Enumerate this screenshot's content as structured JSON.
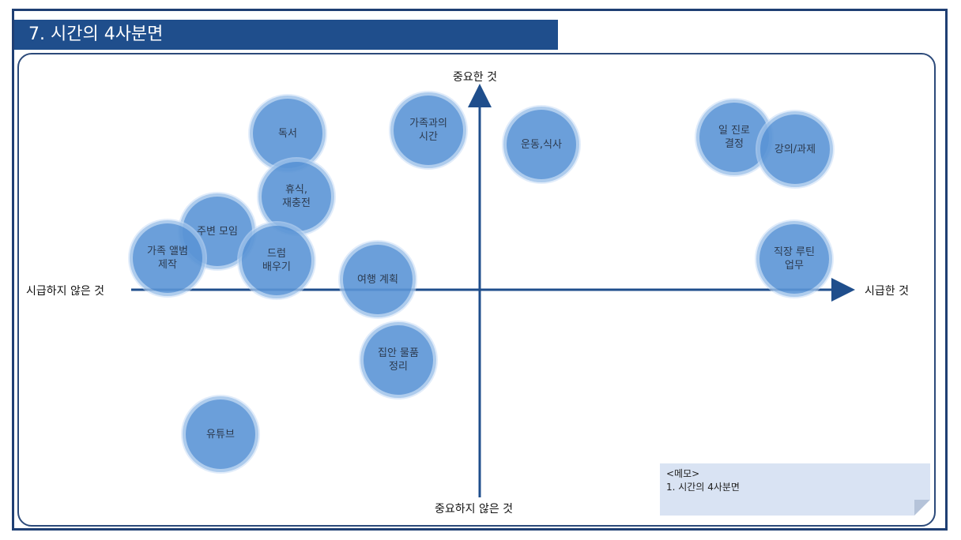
{
  "title": "7. 시간의 4사분면",
  "axes": {
    "top": "중요한 것",
    "bottom": "중요하지 않은 것",
    "left": "시급하지 않은 것",
    "right": "시급한 것"
  },
  "items": [
    {
      "label": "독서"
    },
    {
      "label": "가족과의\n시간"
    },
    {
      "label": "운동,식사"
    },
    {
      "label": "일 진로\n결정"
    },
    {
      "label": "강의/과제"
    },
    {
      "label": "휴식,\n재충전"
    },
    {
      "label": "주변 모임"
    },
    {
      "label": "가족 앨범\n제작"
    },
    {
      "label": "드럼\n배우기"
    },
    {
      "label": "여행 계획"
    },
    {
      "label": "직장 루틴\n업무"
    },
    {
      "label": "집안 물품\n정리"
    },
    {
      "label": "유튜브"
    }
  ],
  "memo": {
    "heading": "<메모>",
    "items": [
      "1.    시간의 4사분면"
    ]
  },
  "colors": {
    "title_bg": "#1f4e8c",
    "bubble": "#5b95d6",
    "axis": "#1f4e8c",
    "memo_bg": "#d9e3f3"
  }
}
